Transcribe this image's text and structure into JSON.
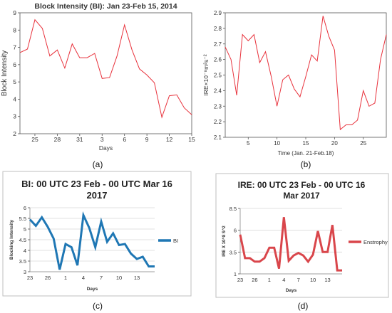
{
  "chart_data": [
    {
      "type": "line",
      "panel_label": "(a)",
      "title": "Block Intensity (BI): Jan 23-Feb 15, 2014",
      "xlabel": "Days",
      "ylabel": "Block Intensity",
      "xlim": [
        23,
        46
      ],
      "ylim": [
        2,
        9
      ],
      "yticks": [
        2,
        3,
        4,
        5,
        6,
        7,
        8,
        9
      ],
      "xtick_positions": [
        25,
        28,
        31,
        34,
        37,
        40,
        43,
        46
      ],
      "xtick_labels": [
        "25",
        "28",
        "31",
        "3",
        "6",
        "9",
        "12",
        "15"
      ],
      "color": "#e8323c",
      "x": [
        23,
        24,
        25,
        26,
        27,
        28,
        29,
        30,
        31,
        32,
        33,
        34,
        35,
        36,
        37,
        38,
        39,
        40,
        41,
        42,
        43,
        44,
        45,
        46
      ],
      "values": [
        6.7,
        6.9,
        8.6,
        8.1,
        6.5,
        6.85,
        5.8,
        7.2,
        6.4,
        6.4,
        6.65,
        5.2,
        5.25,
        6.5,
        8.3,
        6.85,
        5.75,
        5.4,
        4.95,
        2.95,
        4.2,
        4.25,
        3.5,
        3.1
      ]
    },
    {
      "type": "line",
      "panel_label": "(b)",
      "title": "",
      "xlabel": "Time (Jan. 21-Feb.18)",
      "ylabel": "IRE×10⁻⁸m²s⁻²",
      "xlim": [
        1,
        29
      ],
      "ylim": [
        2.1,
        2.9
      ],
      "yticks": [
        2.1,
        2.2,
        2.3,
        2.4,
        2.5,
        2.6,
        2.7,
        2.8,
        2.9
      ],
      "xtick_positions": [
        5,
        10,
        15,
        20,
        25
      ],
      "xtick_labels": [
        "5",
        "10",
        "15",
        "20",
        "25"
      ],
      "color": "#e8323c",
      "x": [
        1,
        2,
        3,
        4,
        5,
        6,
        7,
        8,
        9,
        10,
        11,
        12,
        13,
        14,
        15,
        16,
        17,
        18,
        19,
        20,
        21,
        22,
        23,
        24,
        25,
        26,
        27,
        28,
        29
      ],
      "values": [
        2.68,
        2.6,
        2.37,
        2.76,
        2.72,
        2.76,
        2.58,
        2.65,
        2.49,
        2.3,
        2.47,
        2.5,
        2.41,
        2.36,
        2.49,
        2.63,
        2.59,
        2.88,
        2.75,
        2.66,
        2.15,
        2.18,
        2.18,
        2.21,
        2.4,
        2.3,
        2.32,
        2.6,
        2.76
      ]
    },
    {
      "type": "line",
      "panel_label": "(c)",
      "title": "BI: 00 UTC 23 Feb - 00 UTC Mar 16 2017",
      "xlabel": "Days",
      "ylabel": "Blocking Intensity",
      "xlim": [
        23,
        44
      ],
      "ylim": [
        3,
        6
      ],
      "yticks": [
        3,
        3.5,
        4,
        4.5,
        5,
        5.5,
        6
      ],
      "xtick_positions": [
        23,
        26,
        29,
        32,
        35,
        38,
        41
      ],
      "xtick_labels": [
        "23",
        "26",
        "1",
        "4",
        "7",
        "10",
        "13"
      ],
      "legend": "BI",
      "legend_position": "right",
      "color": "#1f77b4",
      "x": [
        23,
        24,
        25,
        26,
        27,
        28,
        29,
        30,
        31,
        32,
        33,
        34,
        35,
        36,
        37,
        38,
        39,
        40,
        41,
        42,
        43,
        44
      ],
      "values": [
        5.45,
        5.15,
        5.55,
        5.1,
        4.55,
        3.1,
        4.3,
        4.15,
        3.3,
        5.65,
        5.05,
        4.15,
        5.35,
        4.4,
        4.8,
        4.25,
        4.3,
        3.85,
        3.6,
        3.7,
        3.25,
        3.25
      ]
    },
    {
      "type": "line",
      "panel_label": "(d)",
      "title": "IRE: 00 UTC 23 Feb - 00 UTC 16 Mar 2017",
      "xlabel": "Days",
      "ylabel": "IRE X 10^8 S^2",
      "xlim": [
        23,
        44
      ],
      "ylim": [
        1,
        8.5
      ],
      "yticks": [
        1,
        3.5,
        6,
        8.5
      ],
      "xtick_positions": [
        23,
        26,
        29,
        32,
        35,
        38,
        41
      ],
      "xtick_labels": [
        "23",
        "26",
        "1",
        "4",
        "7",
        "10",
        "13"
      ],
      "legend": "Enstrophy",
      "legend_position": "right",
      "color": "#d9464b",
      "x": [
        23,
        24,
        25,
        26,
        27,
        28,
        29,
        30,
        31,
        32,
        33,
        34,
        35,
        36,
        37,
        38,
        39,
        40,
        41,
        42,
        43,
        44
      ],
      "values": [
        5.5,
        2.8,
        2.8,
        2.4,
        2.4,
        2.8,
        4.0,
        4.0,
        1.6,
        7.5,
        2.5,
        3.1,
        3.4,
        3.1,
        2.4,
        3.2,
        5.9,
        3.5,
        3.5,
        6.6,
        1.4,
        1.4
      ]
    }
  ]
}
